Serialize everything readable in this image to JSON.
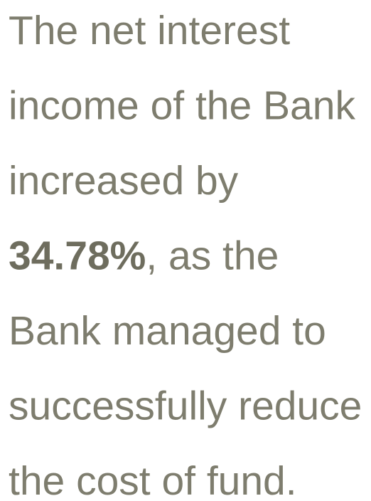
{
  "text": {
    "lines": [
      "The net interest",
      "income of the Bank",
      "increased by",
      {
        "bold": "34.78%",
        "rest": ", as the"
      },
      "Bank managed to",
      "successfully reduce",
      "the cost of fund."
    ]
  }
}
